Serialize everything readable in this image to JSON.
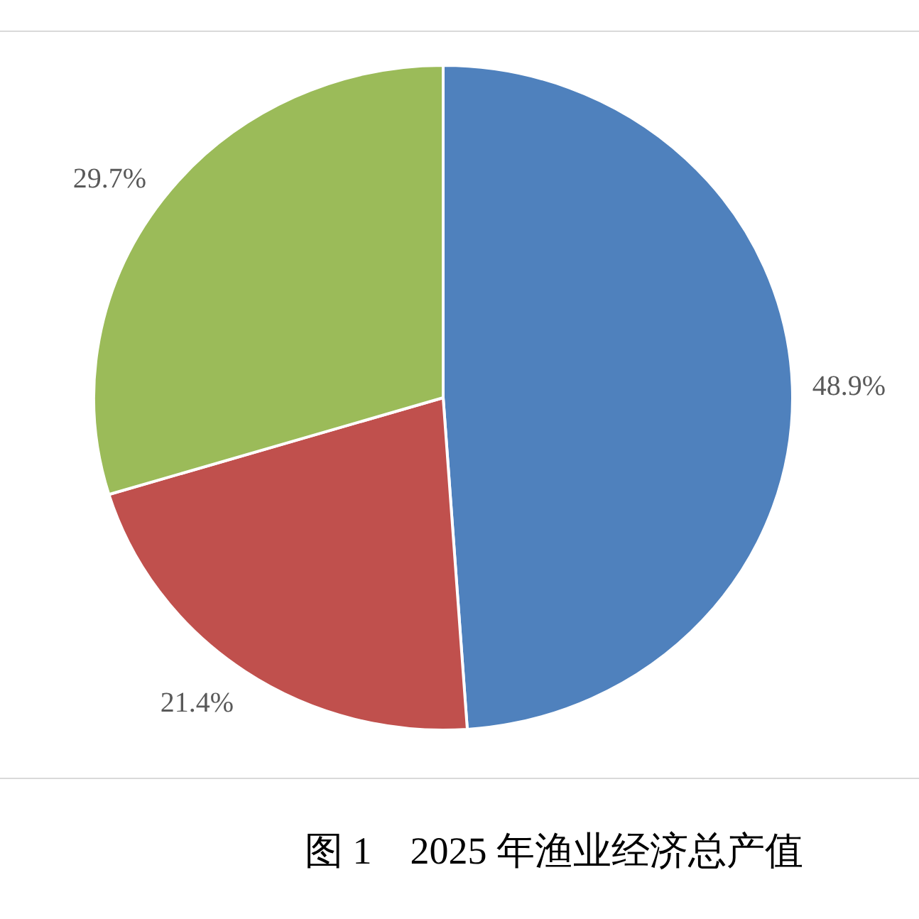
{
  "chart_data": {
    "type": "pie",
    "title": "图 1　2025 年渔业经济总产值",
    "categories": [
      null,
      null,
      null
    ],
    "values": [
      48.9,
      21.4,
      29.7
    ],
    "colors": [
      "#4f81bd",
      "#c0504d",
      "#9bbb59"
    ],
    "value_labels": [
      "48.9%",
      "21.4%",
      "29.7%"
    ]
  }
}
